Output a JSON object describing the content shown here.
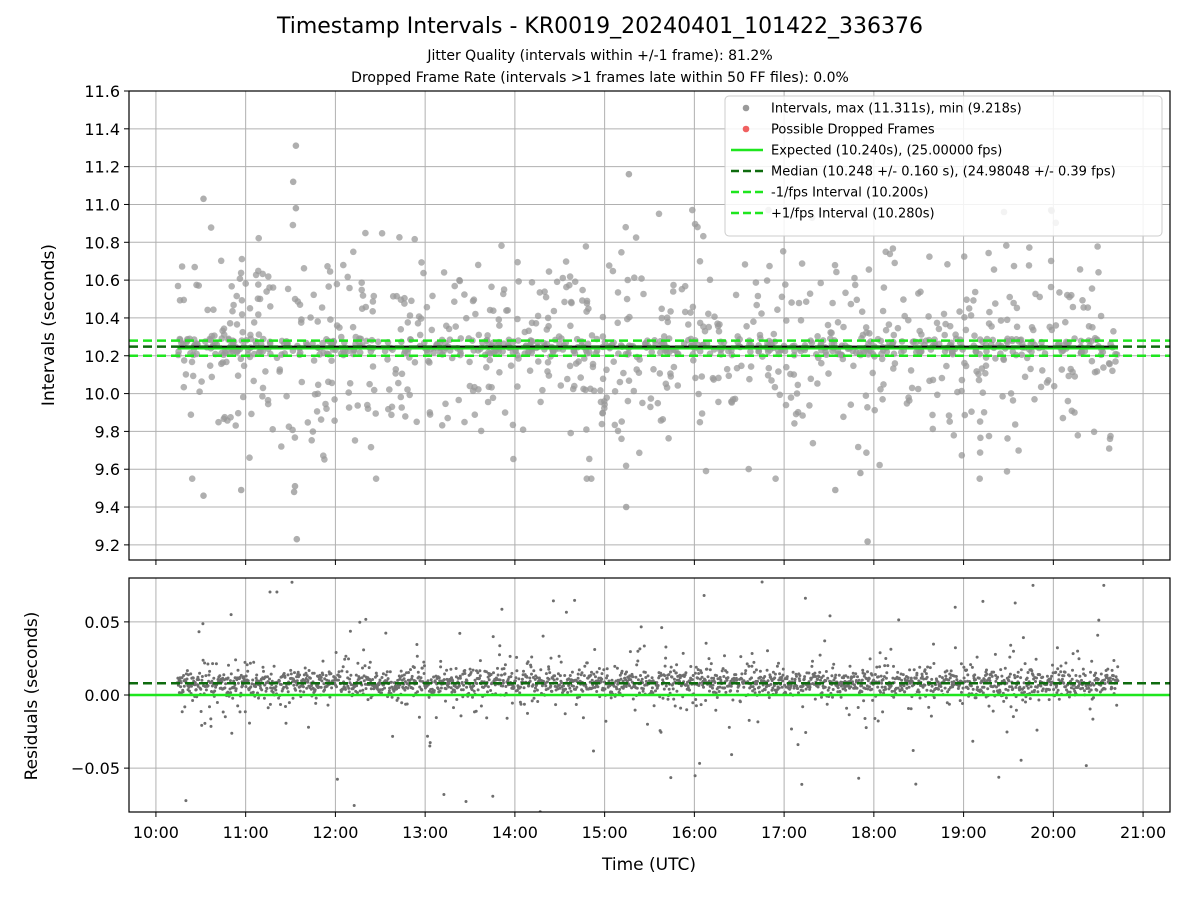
{
  "title": "Timestamp Intervals - KR0019_20240401_101422_336376",
  "subtitle_1": "Jitter Quality (intervals within +/-1 frame): 81.2%",
  "subtitle_2": "Dropped Frame Rate (intervals >1 frames late within 50 FF files): 0.0%",
  "colors": {
    "points": "#9a9a9a",
    "residual_points": "#6e6e6e",
    "dropped": "#f06060",
    "expected": "#1ee61e",
    "median": "#0e6b0e",
    "interval_bounds": "#1ee61e",
    "grid": "#b0b0b0"
  },
  "chart_data": [
    {
      "type": "scatter",
      "panel": "intervals",
      "ylabel": "Intervals (seconds)",
      "xlim": [
        9.7,
        21.3
      ],
      "ylim": [
        9.12,
        11.6
      ],
      "yticks": [
        "9.2",
        "9.4",
        "9.6",
        "9.8",
        "10.0",
        "10.2",
        "10.4",
        "10.6",
        "10.8",
        "11.0",
        "11.2",
        "11.4",
        "11.6"
      ],
      "xticks": [
        "10:00",
        "11:00",
        "12:00",
        "13:00",
        "14:00",
        "15:00",
        "16:00",
        "17:00",
        "18:00",
        "19:00",
        "20:00",
        "21:00"
      ],
      "grid": true,
      "legend_position": "top-right",
      "legend": [
        {
          "label": "Intervals, max (11.311s), min (9.218s)",
          "kind": "point-gray"
        },
        {
          "label": "Possible Dropped Frames",
          "kind": "point-red"
        },
        {
          "label": "Expected (10.240s), (25.00000 fps)",
          "kind": "line-solid-green"
        },
        {
          "label": "Median (10.248 +/- 0.160 s), (24.98048 +/- 0.39 fps)",
          "kind": "line-dashed-darkgreen"
        },
        {
          "label": "-1/fps Interval (10.200s)",
          "kind": "line-dashed-green"
        },
        {
          "label": "+1/fps Interval (10.280s)",
          "kind": "line-dashed-green"
        }
      ],
      "reference_lines": {
        "expected": 10.24,
        "median": 10.248,
        "minus_1fps": 10.2,
        "plus_1fps": 10.28
      },
      "x_range_hours": [
        10.24,
        20.72
      ],
      "max_interval": 11.311,
      "min_interval": 9.218,
      "highlight_points": [
        {
          "x": 11.56,
          "y": 11.311
        },
        {
          "x": 11.53,
          "y": 11.12
        },
        {
          "x": 11.56,
          "y": 10.98
        },
        {
          "x": 10.53,
          "y": 11.03
        },
        {
          "x": 15.27,
          "y": 11.16
        },
        {
          "x": 11.57,
          "y": 9.23
        },
        {
          "x": 17.93,
          "y": 9.218
        },
        {
          "x": 10.53,
          "y": 9.46
        },
        {
          "x": 11.55,
          "y": 9.51
        },
        {
          "x": 11.54,
          "y": 9.48
        },
        {
          "x": 15.24,
          "y": 9.4
        },
        {
          "x": 10.95,
          "y": 9.49
        },
        {
          "x": 17.57,
          "y": 9.49
        },
        {
          "x": 17.85,
          "y": 9.58
        },
        {
          "x": 19.45,
          "y": 10.96
        }
      ],
      "dropped_frames": []
    },
    {
      "type": "scatter",
      "panel": "residuals",
      "xlabel": "Time (UTC)",
      "ylabel": "Residuals (seconds)",
      "xlim": [
        9.7,
        21.3
      ],
      "ylim": [
        -0.08,
        0.08
      ],
      "yticks": [
        "−0.05",
        "0.00",
        "0.05"
      ],
      "xticks": [
        "10:00",
        "11:00",
        "12:00",
        "13:00",
        "14:00",
        "15:00",
        "16:00",
        "17:00",
        "18:00",
        "19:00",
        "20:00",
        "21:00"
      ],
      "grid": true,
      "reference_lines": {
        "zero": 0.0,
        "median_offset": 0.008
      }
    }
  ]
}
